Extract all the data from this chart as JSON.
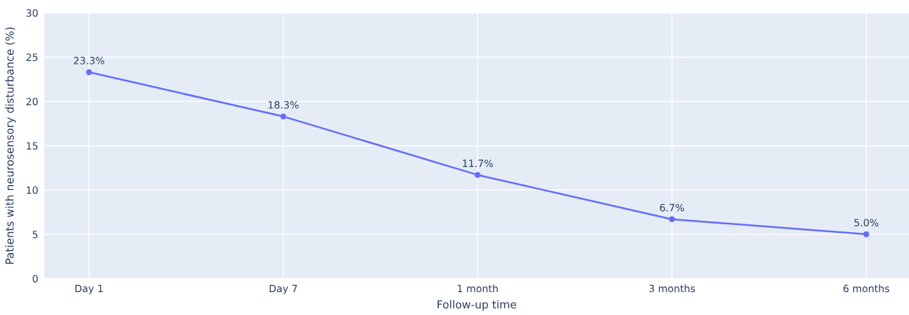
{
  "chart_data": {
    "type": "line",
    "xlabel": "Follow-up time",
    "ylabel": "Patients with neurosensory disturbance (%)",
    "categories": [
      "Day 1",
      "Day 7",
      "1 month",
      "3 months",
      "6 months"
    ],
    "series": [
      {
        "color": "#636efa",
        "values": [
          23.3,
          18.3,
          11.7,
          6.7,
          5.0
        ],
        "value_labels": [
          "23.3%",
          "18.3%",
          "11.7%",
          "6.7%",
          "5.0%"
        ]
      }
    ],
    "ylim": [
      0,
      30
    ],
    "yticks": [
      0,
      5,
      10,
      15,
      20,
      25,
      30
    ],
    "grid": true,
    "marker": "circle",
    "line_style": "solid"
  }
}
